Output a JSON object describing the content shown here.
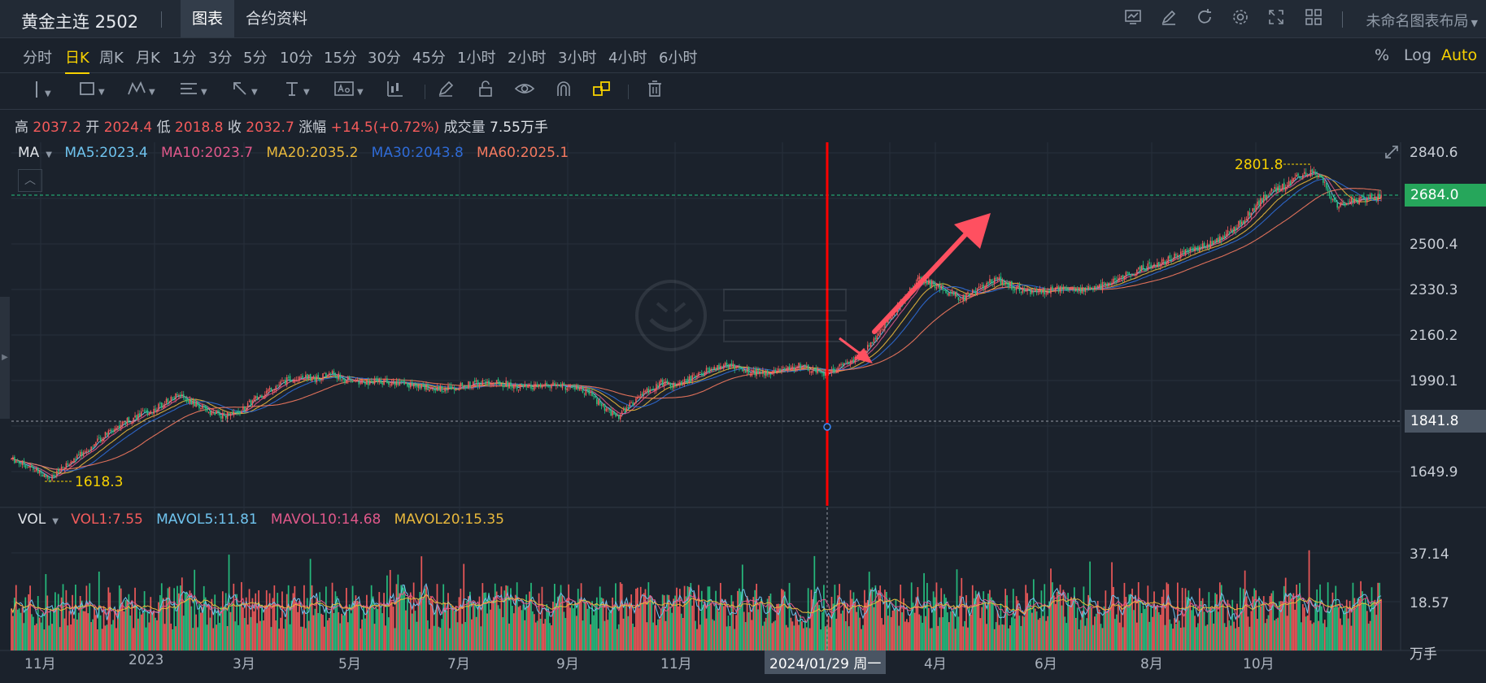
{
  "header": {
    "title": "黄金主连 2502",
    "tabs": [
      {
        "label": "图表",
        "active": true
      },
      {
        "label": "合约资料",
        "active": false
      }
    ],
    "icons": [
      "chart-settings-icon",
      "draw-icon",
      "refresh-icon",
      "gear-icon",
      "fullscreen-icon",
      "layout-grid-icon"
    ],
    "layout_name": "未命名图表布局"
  },
  "periods": [
    {
      "label": "分时"
    },
    {
      "label": "日K",
      "active": true
    },
    {
      "label": "周K"
    },
    {
      "label": "月K"
    },
    {
      "label": "1分"
    },
    {
      "label": "3分"
    },
    {
      "label": "5分"
    },
    {
      "label": "10分"
    },
    {
      "label": "15分"
    },
    {
      "label": "30分"
    },
    {
      "label": "45分"
    },
    {
      "label": "1小时"
    },
    {
      "label": "2小时"
    },
    {
      "label": "3小时"
    },
    {
      "label": "4小时"
    },
    {
      "label": "6小时"
    }
  ],
  "scale_options": {
    "percent": "%",
    "log": "Log",
    "auto": "Auto"
  },
  "ohlc": {
    "high_label": "高",
    "high": "2037.2",
    "open_label": "开",
    "open": "2024.4",
    "low_label": "低",
    "low": "2018.8",
    "close_label": "收",
    "close": "2032.7",
    "change_label": "涨幅",
    "change": "+14.5(+0.72%)",
    "volume_label": "成交量",
    "volume": "7.55万手"
  },
  "ma_legend": {
    "name": "MA",
    "items": [
      {
        "text": "MA5:2023.4",
        "color": "#6fc3ee"
      },
      {
        "text": "MA10:2023.7",
        "color": "#e0588a"
      },
      {
        "text": "MA20:2035.2",
        "color": "#e8b83c"
      },
      {
        "text": "MA30:2043.8",
        "color": "#2f6bd6"
      },
      {
        "text": "MA60:2025.1",
        "color": "#f4795f"
      }
    ]
  },
  "vol_legend": {
    "name": "VOL",
    "items": [
      {
        "text": "VOL1:7.55",
        "color": "#f45b5b"
      },
      {
        "text": "MAVOL5:11.81",
        "color": "#6fc3ee"
      },
      {
        "text": "MAVOL10:14.68",
        "color": "#e0588a"
      },
      {
        "text": "MAVOL20:15.35",
        "color": "#e8b83c"
      }
    ]
  },
  "chart_data": {
    "type": "candlestick",
    "price_axis": [
      "2840.6",
      "2500.4",
      "2330.3",
      "2160.2",
      "1990.1",
      "1649.9"
    ],
    "current_price": "2684.0",
    "crosshair_price": "1841.8",
    "annotations": {
      "max": "2801.8",
      "min": "1618.3"
    },
    "volume_axis": [
      "37.14",
      "18.57"
    ],
    "volume_unit": "万手",
    "x_labels": [
      "11月",
      "2023",
      "3月",
      "5月",
      "7月",
      "9月",
      "11月",
      "4月",
      "6月",
      "8月",
      "10月"
    ],
    "crosshair_date": "2024/01/29 周一",
    "price_path": [
      [
        0,
        1700
      ],
      [
        8,
        1680
      ],
      [
        15,
        1660
      ],
      [
        20,
        1640
      ],
      [
        25,
        1625
      ],
      [
        30,
        1650
      ],
      [
        40,
        1700
      ],
      [
        50,
        1740
      ],
      [
        60,
        1790
      ],
      [
        70,
        1830
      ],
      [
        80,
        1860
      ],
      [
        90,
        1880
      ],
      [
        100,
        1920
      ],
      [
        108,
        1940
      ],
      [
        115,
        1910
      ],
      [
        125,
        1880
      ],
      [
        135,
        1860
      ],
      [
        145,
        1870
      ],
      [
        155,
        1920
      ],
      [
        165,
        1960
      ],
      [
        175,
        1990
      ],
      [
        185,
        2010
      ],
      [
        195,
        2000
      ],
      [
        205,
        2020
      ],
      [
        212,
        1995
      ],
      [
        225,
        1985
      ],
      [
        240,
        1990
      ],
      [
        255,
        1975
      ],
      [
        270,
        1960
      ],
      [
        285,
        1970
      ],
      [
        300,
        1985
      ],
      [
        315,
        1980
      ],
      [
        330,
        1965
      ],
      [
        345,
        1975
      ],
      [
        360,
        1965
      ],
      [
        370,
        1940
      ],
      [
        380,
        1880
      ],
      [
        388,
        1860
      ],
      [
        395,
        1900
      ],
      [
        405,
        1950
      ],
      [
        415,
        1985
      ],
      [
        425,
        1975
      ],
      [
        435,
        2000
      ],
      [
        445,
        2030
      ],
      [
        455,
        2050
      ],
      [
        465,
        2040
      ],
      [
        475,
        2020
      ],
      [
        485,
        2025
      ],
      [
        495,
        2035
      ],
      [
        505,
        2050
      ],
      [
        510,
        2030
      ],
      [
        518,
        2020
      ],
      [
        525,
        2030
      ],
      [
        535,
        2055
      ],
      [
        545,
        2100
      ],
      [
        555,
        2180
      ],
      [
        565,
        2260
      ],
      [
        575,
        2330
      ],
      [
        580,
        2370
      ],
      [
        588,
        2350
      ],
      [
        598,
        2320
      ],
      [
        608,
        2300
      ],
      [
        618,
        2330
      ],
      [
        625,
        2370
      ],
      [
        633,
        2360
      ],
      [
        645,
        2330
      ],
      [
        658,
        2320
      ],
      [
        670,
        2340
      ],
      [
        685,
        2330
      ],
      [
        700,
        2350
      ],
      [
        710,
        2380
      ],
      [
        722,
        2410
      ],
      [
        735,
        2430
      ],
      [
        748,
        2470
      ],
      [
        760,
        2490
      ],
      [
        772,
        2520
      ],
      [
        782,
        2560
      ],
      [
        790,
        2610
      ],
      [
        798,
        2660
      ],
      [
        806,
        2700
      ],
      [
        815,
        2720
      ],
      [
        825,
        2760
      ],
      [
        832,
        2780
      ],
      [
        837,
        2740
      ],
      [
        842,
        2690
      ],
      [
        848,
        2640
      ],
      [
        855,
        2660
      ],
      [
        865,
        2670
      ],
      [
        875,
        2680
      ]
    ],
    "total_bars": 876
  },
  "colors": {
    "up": "#f45b5b",
    "down": "#26c281",
    "crosshair": "#ff0000",
    "arrow": "#ff5060",
    "last_price_bg": "#26a65b",
    "crosshair_tag_bg": "#4a5563"
  }
}
